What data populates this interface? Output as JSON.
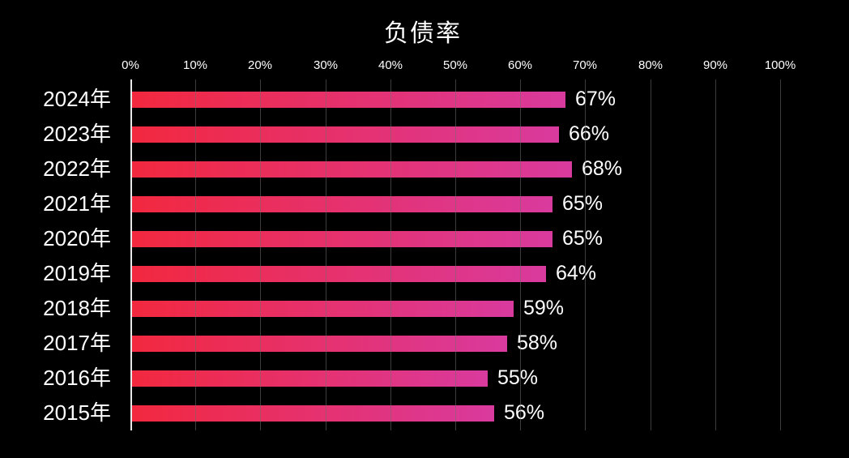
{
  "chart_data": {
    "type": "bar",
    "orientation": "horizontal",
    "title": "负债率",
    "categories": [
      "2024年",
      "2023年",
      "2022年",
      "2021年",
      "2020年",
      "2019年",
      "2018年",
      "2017年",
      "2016年",
      "2015年"
    ],
    "values": [
      67,
      66,
      68,
      65,
      65,
      64,
      59,
      58,
      55,
      56
    ],
    "value_labels": [
      "67%",
      "66%",
      "68%",
      "65%",
      "65%",
      "64%",
      "59%",
      "58%",
      "55%",
      "56%"
    ],
    "x_ticks": [
      "0%",
      "10%",
      "20%",
      "30%",
      "40%",
      "50%",
      "60%",
      "70%",
      "80%",
      "90%",
      "100%"
    ],
    "xlim": [
      0,
      100
    ],
    "xlabel": "",
    "ylabel": "",
    "grid": "vertical-gridlines-on",
    "legend": "none",
    "colors": {
      "background": "#000000",
      "bar_gradient_start": "#f2283e",
      "bar_gradient_end": "#d93a9e",
      "gridline": "rgba(110,110,110,0.55)",
      "axis_line": "#e8e8e8",
      "text": "#ffffff"
    }
  }
}
